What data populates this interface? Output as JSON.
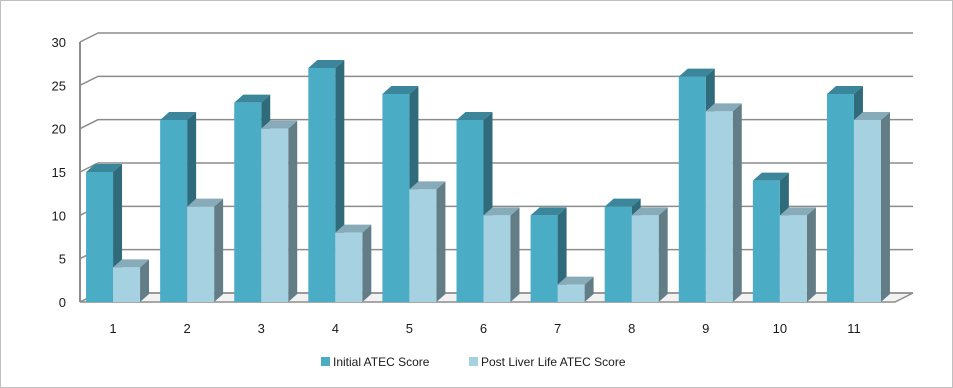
{
  "chart_data": {
    "type": "bar",
    "title": "",
    "xlabel": "",
    "ylabel": "",
    "categories": [
      "1",
      "2",
      "3",
      "4",
      "5",
      "6",
      "7",
      "8",
      "9",
      "10",
      "11"
    ],
    "series": [
      {
        "name": "Initial ATEC Score",
        "values": [
          15,
          21,
          23,
          27,
          24,
          21,
          10,
          11,
          26,
          14,
          24
        ],
        "color": "#4bacc6"
      },
      {
        "name": "Post Liver Life ATEC Score",
        "values": [
          4,
          11,
          20,
          8,
          13,
          10,
          2,
          10,
          22,
          10,
          21
        ],
        "color": "#a5d1e1"
      }
    ],
    "ylim": [
      0,
      30
    ],
    "yticks": [
      0,
      5,
      10,
      15,
      20,
      25,
      30
    ],
    "grid": true,
    "style": "3d-clustered-column",
    "legend_position": "bottom"
  }
}
